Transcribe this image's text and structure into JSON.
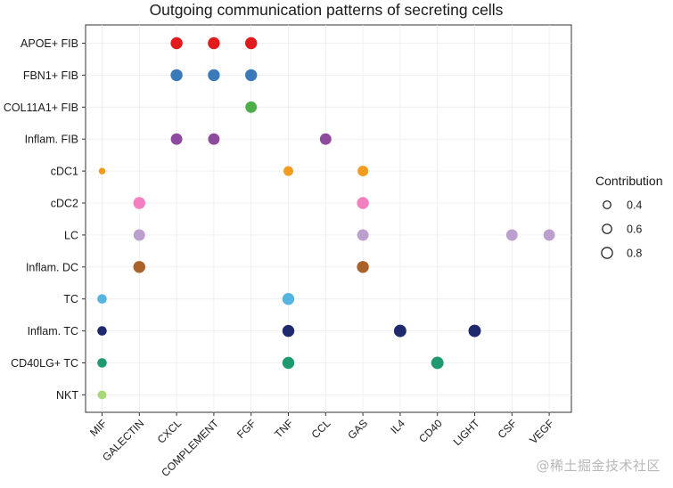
{
  "chart_data": {
    "type": "scatter",
    "title": "Outgoing communication patterns of secreting cells",
    "xlabel": "",
    "ylabel": "",
    "x_categories": [
      "MIF",
      "GALECTIN",
      "CXCL",
      "COMPLEMENT",
      "FGF",
      "TNF",
      "CCL",
      "GAS",
      "IL4",
      "CD40",
      "LIGHT",
      "CSF",
      "VEGF"
    ],
    "y_categories": [
      "APOE+ FIB",
      "FBN1+ FIB",
      "COL11A1+ FIB",
      "Inflam. FIB",
      "cDC1",
      "cDC2",
      "LC",
      "Inflam. DC",
      "TC",
      "Inflam. TC",
      "CD40LG+ TC",
      "NKT"
    ],
    "grid": true,
    "legend": {
      "title": "Contribution",
      "placement": "right",
      "entries": [
        {
          "label": "0.4",
          "value": 0.4
        },
        {
          "label": "0.6",
          "value": 0.6
        },
        {
          "label": "0.8",
          "value": 0.8
        }
      ]
    },
    "series": [
      {
        "cell": "APOE+ FIB",
        "color": "#e31a1c",
        "points": [
          {
            "x": "CXCL",
            "size": 0.9
          },
          {
            "x": "COMPLEMENT",
            "size": 0.9
          },
          {
            "x": "FGF",
            "size": 0.9
          }
        ]
      },
      {
        "cell": "FBN1+ FIB",
        "color": "#3a7ab8",
        "points": [
          {
            "x": "CXCL",
            "size": 0.9
          },
          {
            "x": "COMPLEMENT",
            "size": 0.9
          },
          {
            "x": "FGF",
            "size": 0.9
          }
        ]
      },
      {
        "cell": "COL11A1+ FIB",
        "color": "#4daf4a",
        "points": [
          {
            "x": "FGF",
            "size": 0.85
          }
        ]
      },
      {
        "cell": "Inflam. FIB",
        "color": "#8e4a9e",
        "points": [
          {
            "x": "CXCL",
            "size": 0.85
          },
          {
            "x": "COMPLEMENT",
            "size": 0.85
          },
          {
            "x": "CCL",
            "size": 0.85
          }
        ]
      },
      {
        "cell": "cDC1",
        "color": "#f29b1c",
        "points": [
          {
            "x": "MIF",
            "size": 0.3
          },
          {
            "x": "TNF",
            "size": 0.65
          },
          {
            "x": "GAS",
            "size": 0.75
          }
        ]
      },
      {
        "cell": "cDC2",
        "color": "#f47fc0",
        "points": [
          {
            "x": "GALECTIN",
            "size": 0.9
          },
          {
            "x": "GAS",
            "size": 0.9
          }
        ]
      },
      {
        "cell": "LC",
        "color": "#bb9fcc",
        "points": [
          {
            "x": "GALECTIN",
            "size": 0.85
          },
          {
            "x": "GAS",
            "size": 0.85
          },
          {
            "x": "CSF",
            "size": 0.85
          },
          {
            "x": "VEGF",
            "size": 0.85
          }
        ]
      },
      {
        "cell": "Inflam. DC",
        "color": "#a8622a",
        "points": [
          {
            "x": "GALECTIN",
            "size": 0.9
          },
          {
            "x": "GAS",
            "size": 0.9
          }
        ]
      },
      {
        "cell": "TC",
        "color": "#56b4e0",
        "points": [
          {
            "x": "MIF",
            "size": 0.62
          },
          {
            "x": "TNF",
            "size": 0.9
          }
        ]
      },
      {
        "cell": "Inflam. TC",
        "color": "#1f2a6e",
        "points": [
          {
            "x": "MIF",
            "size": 0.62
          },
          {
            "x": "TNF",
            "size": 0.9
          },
          {
            "x": "IL4",
            "size": 0.95
          },
          {
            "x": "LIGHT",
            "size": 0.95
          }
        ]
      },
      {
        "cell": "CD40LG+ TC",
        "color": "#1e9a6e",
        "points": [
          {
            "x": "MIF",
            "size": 0.62
          },
          {
            "x": "TNF",
            "size": 0.9
          },
          {
            "x": "CD40",
            "size": 0.95
          }
        ]
      },
      {
        "cell": "NKT",
        "color": "#a8d878",
        "points": [
          {
            "x": "MIF",
            "size": 0.55
          }
        ]
      }
    ]
  },
  "watermark": "@稀土掘金技术社区"
}
